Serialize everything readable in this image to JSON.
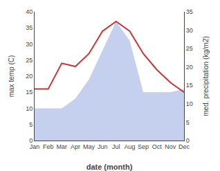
{
  "chart_data": {
    "type": "line",
    "categories": [
      "Jan",
      "Feb",
      "Mar",
      "Apr",
      "May",
      "Jun",
      "Jul",
      "Aug",
      "Sep",
      "Oct",
      "Nov",
      "Dec"
    ],
    "series": [
      {
        "type": "area",
        "color": "#c5d0ee",
        "values": [
          10,
          10,
          10,
          13,
          19,
          28,
          37,
          31,
          15,
          15,
          15,
          16
        ]
      },
      {
        "type": "line",
        "color": "#cc3333",
        "values": [
          16,
          16,
          24,
          23,
          27,
          34,
          37,
          34,
          27,
          22,
          18,
          15
        ]
      }
    ],
    "xlabel": "date (month)",
    "ylabel": "max temp (C)",
    "y2label": "med. precipitation (kg/m2)",
    "ylim": [
      0,
      40
    ],
    "yticks": [
      0,
      5,
      10,
      15,
      20,
      25,
      30,
      35,
      40
    ],
    "y2lim": [
      0,
      35
    ],
    "y2ticks": [
      0,
      5,
      10,
      15,
      20,
      25,
      30,
      35
    ],
    "grid": false
  }
}
